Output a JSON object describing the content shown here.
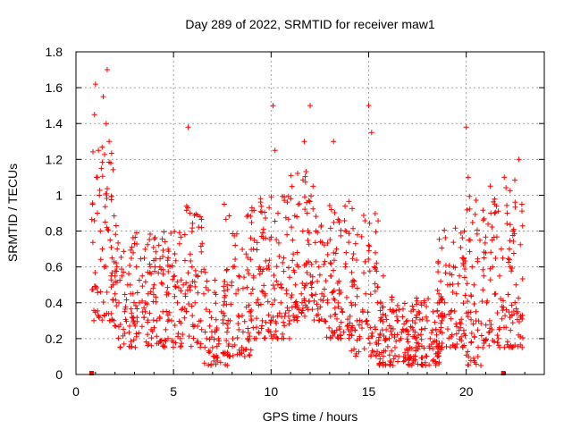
{
  "chart_data": {
    "type": "scatter",
    "title": "Day 289 of 2022, SRMTID for receiver maw1",
    "xlabel": "GPS time / hours",
    "ylabel": "SRMTID / TECUs",
    "xlim": [
      0,
      24
    ],
    "ylim": [
      0,
      1.8
    ],
    "xticks": [
      0,
      5,
      10,
      15,
      20
    ],
    "xtick_labels": [
      "0",
      "5",
      "10",
      "15",
      "20"
    ],
    "yticks": [
      0,
      0.2,
      0.4,
      0.6,
      0.8,
      1.0,
      1.2,
      1.4,
      1.6,
      1.8
    ],
    "ytick_labels": [
      "0",
      "0.2",
      "0.4",
      "0.6",
      "0.8",
      "1",
      "1.2",
      "1.4",
      "1.6",
      "1.8"
    ],
    "grid": true,
    "marker": "plus",
    "color": "#ff0000",
    "series": [
      {
        "name": "SRMTID",
        "x": [
          0.85,
          0.95,
          1.0,
          1.05,
          1.1,
          1.15,
          1.2,
          1.25,
          1.3,
          1.35,
          1.4,
          1.45,
          1.5,
          1.55,
          1.6,
          1.7,
          1.75,
          1.8,
          1.85,
          1.9,
          2.0,
          2.1,
          2.2,
          2.35,
          2.5,
          2.65,
          2.8,
          2.95,
          3.1,
          3.25,
          3.4,
          3.55,
          3.7,
          3.85,
          4.0,
          4.15,
          4.3,
          4.45,
          4.6,
          4.75,
          4.9,
          5.05,
          5.2,
          5.35,
          5.5,
          5.65,
          5.75,
          5.85,
          5.95,
          6.1,
          6.25,
          6.4,
          6.55,
          6.7,
          6.85,
          7.0,
          7.1,
          7.2,
          7.3,
          7.45,
          7.6,
          7.75,
          7.9,
          8.05,
          8.2,
          8.35,
          8.5,
          8.65,
          8.8,
          8.95,
          9.1,
          9.25,
          9.4,
          9.55,
          9.7,
          9.85,
          10.0,
          10.1,
          10.2,
          10.35,
          10.5,
          10.65,
          10.8,
          10.95,
          11.1,
          11.25,
          11.4,
          11.55,
          11.7,
          11.85,
          12.0,
          12.15,
          12.3,
          12.45,
          12.6,
          12.75,
          12.9,
          13.05,
          13.2,
          13.35,
          13.5,
          13.65,
          13.8,
          13.95,
          14.1,
          14.25,
          14.4,
          14.55,
          14.7,
          14.85,
          15.0,
          15.15,
          15.3,
          15.45,
          15.6,
          15.75,
          15.9,
          16.05,
          16.2,
          16.35,
          16.5,
          16.65,
          16.8,
          16.95,
          17.1,
          17.25,
          17.4,
          17.55,
          17.7,
          17.85,
          18.0,
          18.15,
          18.3,
          18.45,
          18.6,
          18.75,
          18.9,
          19.05,
          19.2,
          19.35,
          19.5,
          19.65,
          19.8,
          19.9,
          20.0,
          20.1,
          20.2,
          20.3,
          20.4,
          20.5,
          20.6,
          20.75,
          20.9,
          21.05,
          21.2,
          21.35,
          21.5,
          21.65,
          21.8,
          21.95,
          22.1,
          22.25,
          22.4,
          22.55,
          22.7,
          22.85
        ],
        "y": [
          0.95,
          1.45,
          1.62,
          1.1,
          0.9,
          1.25,
          1.0,
          0.8,
          1.15,
          0.7,
          1.55,
          0.6,
          0.85,
          1.4,
          1.7,
          1.3,
          0.75,
          0.55,
          0.65,
          0.5,
          0.45,
          0.6,
          0.4,
          0.55,
          0.35,
          0.5,
          0.45,
          0.3,
          0.6,
          0.4,
          0.55,
          0.35,
          0.45,
          0.25,
          0.5,
          0.3,
          0.6,
          0.35,
          0.25,
          0.45,
          0.3,
          0.55,
          0.4,
          0.2,
          0.5,
          0.35,
          1.38,
          0.9,
          0.6,
          0.4,
          0.55,
          0.3,
          0.45,
          0.2,
          0.35,
          0.15,
          0.1,
          0.25,
          0.2,
          0.35,
          0.95,
          0.5,
          0.3,
          0.6,
          0.45,
          0.25,
          0.15,
          0.1,
          0.2,
          0.35,
          0.55,
          0.4,
          0.6,
          0.3,
          0.45,
          0.25,
          0.3,
          1.5,
          1.25,
          0.5,
          0.4,
          0.65,
          0.45,
          0.3,
          0.75,
          0.5,
          0.6,
          0.45,
          1.3,
          0.9,
          1.5,
          1.05,
          0.8,
          0.6,
          0.45,
          0.3,
          0.4,
          0.55,
          1.3,
          0.7,
          0.45,
          0.35,
          0.6,
          0.25,
          0.4,
          0.5,
          0.3,
          0.2,
          0.35,
          0.45,
          1.5,
          1.35,
          0.6,
          0.4,
          0.3,
          0.55,
          0.25,
          0.2,
          0.35,
          0.15,
          0.3,
          0.2,
          0.1,
          0.25,
          0.15,
          0.3,
          0.2,
          0.35,
          0.25,
          0.4,
          0.3,
          0.2,
          0.35,
          0.25,
          0.45,
          0.3,
          0.4,
          0.5,
          0.35,
          0.6,
          0.45,
          0.55,
          0.65,
          0.8,
          1.38,
          1.1,
          0.75,
          0.6,
          0.5,
          0.35,
          0.1,
          0.05,
          0.55,
          0.4,
          0.3,
          0.6,
          0.45,
          0.2,
          0.7,
          1.1,
          0.9,
          0.6,
          0.8,
          0.5,
          1.2,
          0.95
        ],
        "bands": [
          {
            "from": 0.8,
            "to": 2.1,
            "min": 0.3,
            "max": 1.3,
            "density": 70
          },
          {
            "from": 2.0,
            "to": 5.5,
            "min": 0.15,
            "max": 0.8,
            "density": 190
          },
          {
            "from": 5.5,
            "to": 6.5,
            "min": 0.15,
            "max": 1.0,
            "density": 55
          },
          {
            "from": 6.5,
            "to": 7.8,
            "min": 0.05,
            "max": 0.6,
            "density": 60
          },
          {
            "from": 7.5,
            "to": 9.0,
            "min": 0.1,
            "max": 0.9,
            "density": 75
          },
          {
            "from": 8.8,
            "to": 11.0,
            "min": 0.2,
            "max": 1.0,
            "density": 120
          },
          {
            "from": 11.0,
            "to": 12.6,
            "min": 0.3,
            "max": 1.2,
            "density": 100
          },
          {
            "from": 12.5,
            "to": 14.2,
            "min": 0.2,
            "max": 1.0,
            "density": 95
          },
          {
            "from": 14.0,
            "to": 15.5,
            "min": 0.1,
            "max": 0.9,
            "density": 75
          },
          {
            "from": 15.5,
            "to": 18.8,
            "min": 0.05,
            "max": 0.45,
            "density": 200
          },
          {
            "from": 18.5,
            "to": 20.0,
            "min": 0.15,
            "max": 0.85,
            "density": 85
          },
          {
            "from": 20.0,
            "to": 20.6,
            "min": 0.05,
            "max": 1.0,
            "density": 40
          },
          {
            "from": 20.6,
            "to": 22.9,
            "min": 0.15,
            "max": 1.1,
            "density": 130
          }
        ]
      }
    ],
    "outage_markers_x": [
      0.8,
      21.9
    ]
  }
}
